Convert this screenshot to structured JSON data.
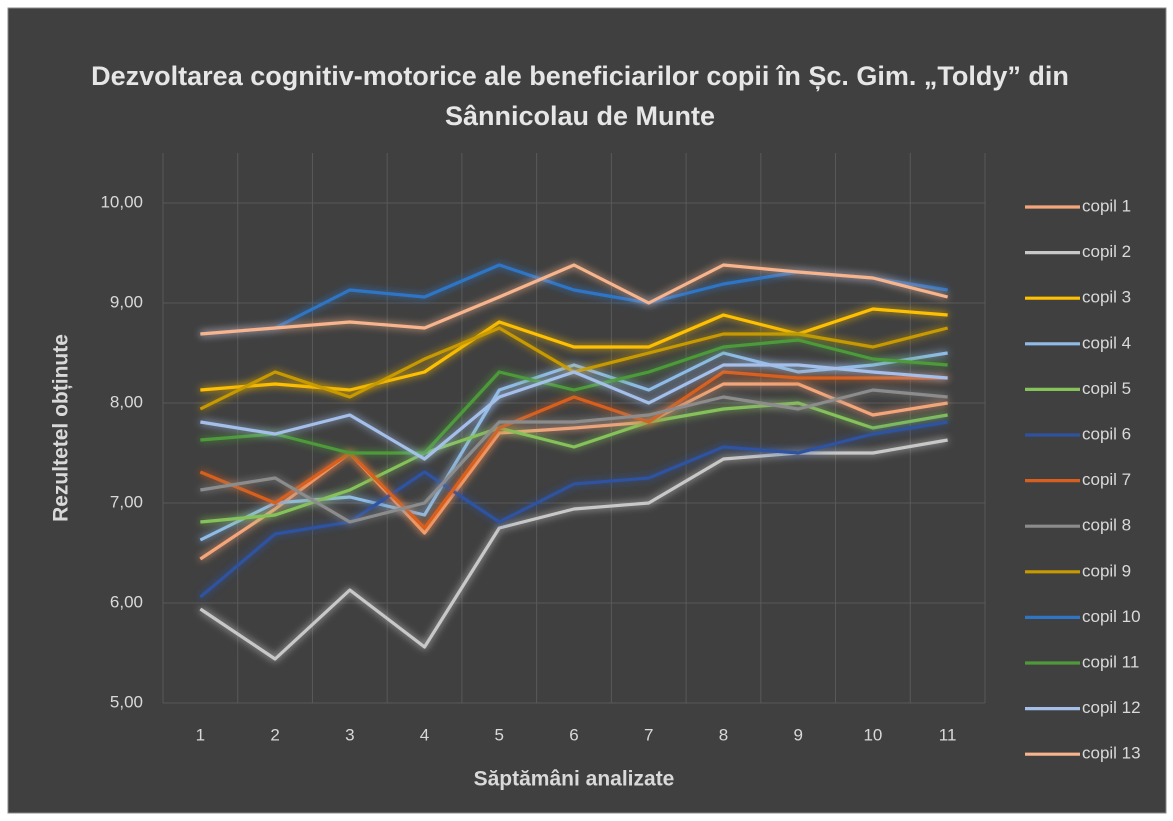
{
  "chart_data": {
    "type": "line",
    "title": "Dezvoltarea cognitiv-motorice ale beneficiarilor copii în  Șc. Gim. „Toldy” din Sânnicolau de Munte",
    "x_label": "Săptămâni analizate",
    "y_label": "Rezultetel obținute",
    "categories": [
      "1",
      "2",
      "3",
      "4",
      "5",
      "6",
      "7",
      "8",
      "9",
      "10",
      "11"
    ],
    "ylim": [
      5,
      10.5
    ],
    "yticks": [
      {
        "value": 5,
        "label": "5,00"
      },
      {
        "value": 6,
        "label": "6,00"
      },
      {
        "value": 7,
        "label": "7,00"
      },
      {
        "value": 8,
        "label": "8,00"
      },
      {
        "value": 9,
        "label": "9,00"
      },
      {
        "value": 10,
        "label": "10,00"
      }
    ],
    "grid": true,
    "legend": "right",
    "series": [
      {
        "name": "copil 1",
        "color": "#F4A67A",
        "values": [
          6.44,
          6.94,
          7.5,
          6.7,
          7.7,
          7.75,
          7.81,
          8.19,
          8.19,
          7.88,
          8.0
        ]
      },
      {
        "name": "copil 2",
        "color": "#C8C8C8",
        "values": [
          5.94,
          5.44,
          6.13,
          5.56,
          6.75,
          6.94,
          7.0,
          7.44,
          7.5,
          7.5,
          7.63
        ]
      },
      {
        "name": "copil 3",
        "color": "#FFC000",
        "values": [
          8.13,
          8.19,
          8.13,
          8.31,
          8.81,
          8.56,
          8.56,
          8.88,
          8.69,
          8.94,
          8.88
        ]
      },
      {
        "name": "copil 4",
        "color": "#8FBCE6",
        "values": [
          6.63,
          7.0,
          7.06,
          6.88,
          8.13,
          8.38,
          8.13,
          8.5,
          8.31,
          8.38,
          8.5
        ]
      },
      {
        "name": "copil 5",
        "color": "#86C25A",
        "values": [
          6.81,
          6.88,
          7.13,
          7.5,
          7.75,
          7.56,
          7.81,
          7.94,
          8.0,
          7.75,
          7.88
        ]
      },
      {
        "name": "copil 6",
        "color": "#2F52A0",
        "values": [
          6.06,
          6.69,
          6.81,
          7.31,
          6.81,
          7.19,
          7.25,
          7.56,
          7.5,
          7.69,
          7.81
        ]
      },
      {
        "name": "copil 7",
        "color": "#D95F1E",
        "values": [
          7.31,
          7.0,
          7.5,
          6.75,
          7.75,
          8.06,
          7.81,
          8.31,
          8.25,
          8.25,
          8.25
        ]
      },
      {
        "name": "copil 8",
        "color": "#8C8C8C",
        "values": [
          7.13,
          7.25,
          6.81,
          7.0,
          7.81,
          7.81,
          7.88,
          8.06,
          7.94,
          8.13,
          8.06
        ]
      },
      {
        "name": "copil 9",
        "color": "#C89A00",
        "values": [
          7.94,
          8.31,
          8.06,
          8.44,
          8.75,
          8.31,
          8.5,
          8.69,
          8.69,
          8.56,
          8.75
        ]
      },
      {
        "name": "copil 10",
        "color": "#2E75C6",
        "values": [
          8.69,
          8.75,
          9.13,
          9.06,
          9.38,
          9.13,
          9.0,
          9.19,
          9.31,
          9.25,
          9.13
        ]
      },
      {
        "name": "copil 11",
        "color": "#4E9A3A",
        "values": [
          7.63,
          7.69,
          7.5,
          7.5,
          8.31,
          8.13,
          8.31,
          8.56,
          8.63,
          8.44,
          8.38
        ]
      },
      {
        "name": "copil 12",
        "color": "#A4BFEA",
        "values": [
          7.81,
          7.69,
          7.88,
          7.44,
          8.06,
          8.31,
          8.0,
          8.38,
          8.38,
          8.31,
          8.25
        ]
      },
      {
        "name": "copil 13",
        "color": "#F8B48C",
        "values": [
          8.69,
          8.75,
          8.81,
          8.75,
          9.06,
          9.38,
          9.0,
          9.38,
          9.31,
          9.25,
          9.06
        ]
      }
    ]
  }
}
